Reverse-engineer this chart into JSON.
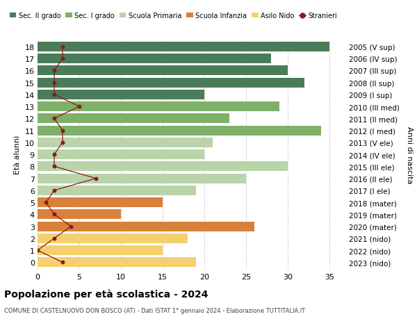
{
  "ages": [
    18,
    17,
    16,
    15,
    14,
    13,
    12,
    11,
    10,
    9,
    8,
    7,
    6,
    5,
    4,
    3,
    2,
    1,
    0
  ],
  "anni_nascita": [
    "2005 (V sup)",
    "2006 (IV sup)",
    "2007 (III sup)",
    "2008 (II sup)",
    "2009 (I sup)",
    "2010 (III med)",
    "2011 (II med)",
    "2012 (I med)",
    "2013 (V ele)",
    "2014 (IV ele)",
    "2015 (III ele)",
    "2016 (II ele)",
    "2017 (I ele)",
    "2018 (mater)",
    "2019 (mater)",
    "2020 (mater)",
    "2021 (nido)",
    "2022 (nido)",
    "2023 (nido)"
  ],
  "bar_values": [
    35,
    28,
    30,
    32,
    20,
    29,
    23,
    34,
    21,
    20,
    30,
    25,
    19,
    15,
    10,
    26,
    18,
    15,
    19
  ],
  "bar_colors": [
    "#4a7c59",
    "#4a7c59",
    "#4a7c59",
    "#4a7c59",
    "#4a7c59",
    "#7fb069",
    "#7fb069",
    "#7fb069",
    "#b8d4a8",
    "#b8d4a8",
    "#b8d4a8",
    "#b8d4a8",
    "#b8d4a8",
    "#d9813a",
    "#d9813a",
    "#d9813a",
    "#f5d06e",
    "#f5d06e",
    "#f5d06e"
  ],
  "stranieri": [
    3,
    3,
    2,
    2,
    2,
    5,
    2,
    3,
    3,
    2,
    2,
    7,
    2,
    1,
    2,
    4,
    2,
    0,
    3
  ],
  "stranieri_color": "#8b1a1a",
  "legend_labels": [
    "Sec. II grado",
    "Sec. I grado",
    "Scuola Primaria",
    "Scuola Infanzia",
    "Asilo Nido",
    "Stranieri"
  ],
  "legend_colors": [
    "#4a7c59",
    "#7fb069",
    "#b8d4a8",
    "#d9813a",
    "#f5d06e",
    "#8b1a1a"
  ],
  "ylabel_left": "Età alunni",
  "ylabel_right": "Anni di nascita",
  "title": "Popolazione per età scolastica - 2024",
  "subtitle": "COMUNE DI CASTELNUOVO DON BOSCO (AT) - Dati ISTAT 1° gennaio 2024 - Elaborazione TUTTITALIA.IT",
  "xlim": [
    0,
    37
  ],
  "xticks": [
    0,
    5,
    10,
    15,
    20,
    25,
    30,
    35
  ],
  "background_color": "#ffffff",
  "grid_color": "#cccccc"
}
